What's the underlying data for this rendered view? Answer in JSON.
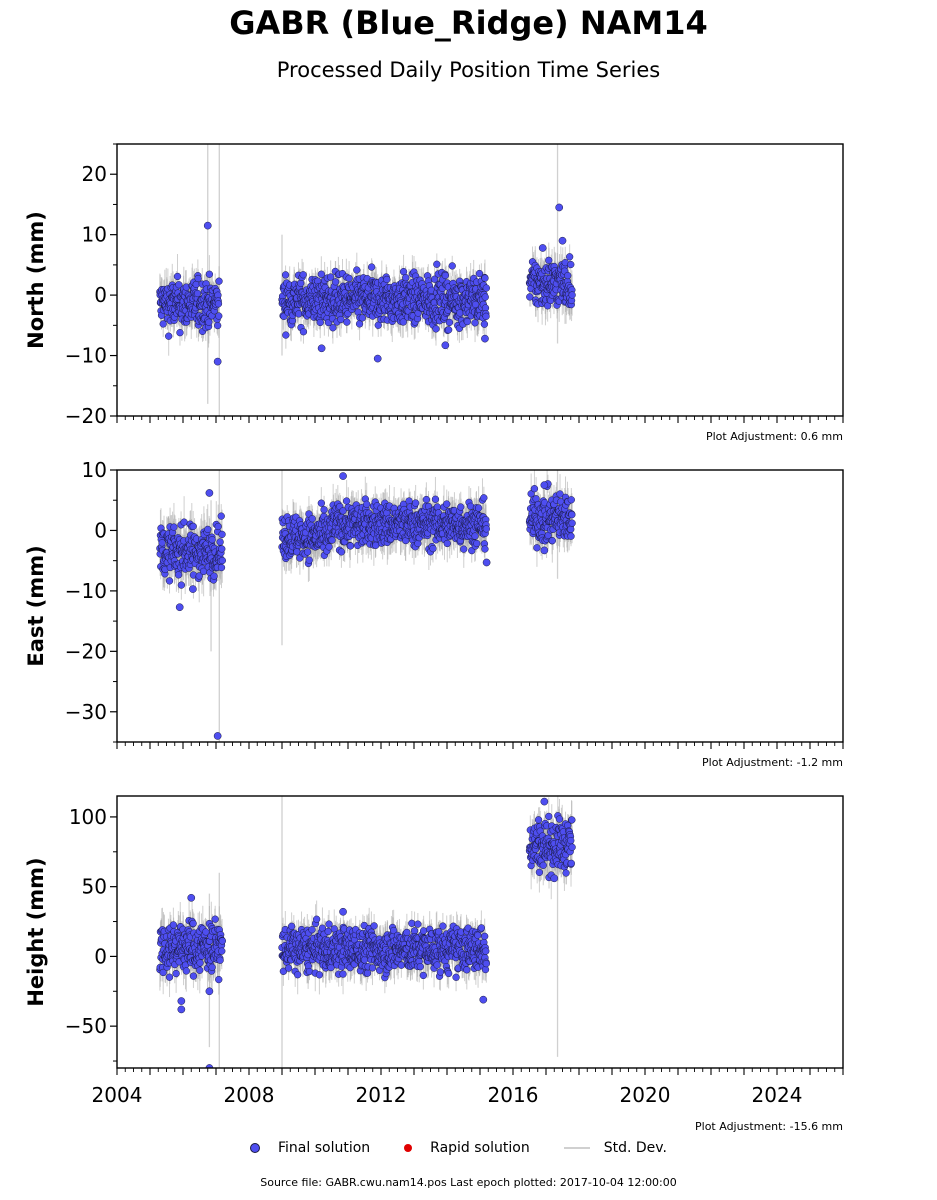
{
  "title": "GABR (Blue_Ridge) NAM14",
  "subtitle": "Processed Daily Position Time Series",
  "colors": {
    "final": "#4e4ef0",
    "rapid": "#e00000",
    "stddev": "#d0d0d0",
    "edge": "#1a1a40"
  },
  "legend": {
    "final": "Final solution",
    "rapid": "Rapid solution",
    "stddev": "Std. Dev."
  },
  "footer": "Source file: GABR.cwu.nam14.pos  Last epoch plotted: 2017-10-04 12:00:00",
  "chart_data": [
    {
      "type": "scatter",
      "ylabel": "North (mm)",
      "adjustment": "Plot Adjustment: 0.6 mm",
      "xlim": [
        2004,
        2026
      ],
      "ylim": [
        -20,
        25
      ],
      "yticks": [
        20,
        10,
        0,
        -10,
        -20
      ],
      "ytick_labels": [
        "20",
        "10",
        "0",
        "−10",
        "−20"
      ],
      "segments": [
        {
          "start": 2005.3,
          "end": 2007.1,
          "mean": -1.5,
          "spread": 2.0,
          "err": 2.5
        },
        {
          "start": 2009.0,
          "end": 2015.2,
          "mean": -0.8,
          "spread": 2.0,
          "err": 2.3
        },
        {
          "start": 2016.5,
          "end": 2017.8,
          "mean": 2.0,
          "spread": 2.0,
          "err": 2.5
        }
      ],
      "outliers": [
        [
          2006.75,
          11.5
        ],
        [
          2007.05,
          -11.0
        ],
        [
          2011.9,
          -10.5
        ],
        [
          2017.4,
          14.5
        ],
        [
          2017.5,
          9.0
        ],
        [
          2010.2,
          -8.8
        ],
        [
          2013.95,
          -8.3
        ],
        [
          2015.15,
          -7.2
        ],
        [
          2016.9,
          7.8
        ]
      ],
      "long_errors": [
        [
          2006.75,
          -18,
          25
        ],
        [
          2007.1,
          -20,
          25
        ],
        [
          2009.0,
          -10,
          10
        ],
        [
          2017.35,
          -8,
          25
        ]
      ]
    },
    {
      "type": "scatter",
      "ylabel": "East (mm)",
      "adjustment": "Plot Adjustment: -1.2 mm",
      "xlim": [
        2004,
        2026
      ],
      "ylim": [
        -35,
        10
      ],
      "yticks": [
        10,
        0,
        -10,
        -20,
        -30
      ],
      "ytick_labels": [
        "10",
        "0",
        "−10",
        "−20",
        "−30"
      ],
      "segments": [
        {
          "start": 2005.3,
          "end": 2007.2,
          "mean": -3.5,
          "spread": 2.0,
          "err": 3.0
        },
        {
          "start": 2009.0,
          "end": 2010.5,
          "mean": -1.0,
          "spread": 1.8,
          "err": 2.5
        },
        {
          "start": 2010.5,
          "end": 2015.2,
          "mean": 1.0,
          "spread": 1.8,
          "err": 2.5
        },
        {
          "start": 2016.5,
          "end": 2017.8,
          "mean": 2.0,
          "spread": 2.0,
          "err": 2.5
        }
      ],
      "outliers": [
        [
          2007.05,
          -34.0
        ],
        [
          2005.9,
          -12.7
        ],
        [
          2006.8,
          6.2
        ],
        [
          2010.85,
          9.0
        ],
        [
          2015.2,
          -5.3
        ],
        [
          2016.95,
          7.5
        ],
        [
          2016.95,
          -3.3
        ],
        [
          2006.3,
          -9.7
        ]
      ],
      "long_errors": [
        [
          2006.85,
          -20,
          5
        ],
        [
          2007.1,
          -35,
          10
        ],
        [
          2009.0,
          -19,
          10
        ],
        [
          2017.35,
          -8,
          10
        ]
      ]
    },
    {
      "type": "scatter",
      "ylabel": "Height (mm)",
      "adjustment": "Plot Adjustment: -15.6 mm",
      "xlim": [
        2004,
        2026
      ],
      "ylim": [
        -80,
        115
      ],
      "yticks": [
        100,
        50,
        0,
        -50
      ],
      "ytick_labels": [
        "100",
        "50",
        "0",
        "−50"
      ],
      "xticks": [
        2004,
        2008,
        2012,
        2016,
        2020,
        2024
      ],
      "xtick_labels": [
        "2004",
        "2008",
        "2012",
        "2016",
        "2020",
        "2024"
      ],
      "segments": [
        {
          "start": 2005.3,
          "end": 2007.2,
          "mean": 7.0,
          "spread": 9.0,
          "err": 12.0
        },
        {
          "start": 2009.0,
          "end": 2015.2,
          "mean": 5.0,
          "spread": 8.0,
          "err": 10.0
        },
        {
          "start": 2016.5,
          "end": 2017.8,
          "mean": 80.0,
          "spread": 9.0,
          "err": 12.0
        }
      ],
      "outliers": [
        [
          2006.25,
          42.0
        ],
        [
          2005.95,
          -32.0
        ],
        [
          2005.95,
          -38.0
        ],
        [
          2006.8,
          -25.0
        ],
        [
          2006.8,
          -80.0
        ],
        [
          2015.1,
          -31.0
        ],
        [
          2016.95,
          111.0
        ],
        [
          2017.25,
          56.0
        ],
        [
          2010.85,
          32.0
        ]
      ],
      "long_errors": [
        [
          2006.8,
          -65,
          45
        ],
        [
          2007.1,
          -80,
          60
        ],
        [
          2009.0,
          -80,
          115
        ],
        [
          2017.35,
          -72,
          100
        ]
      ]
    }
  ]
}
